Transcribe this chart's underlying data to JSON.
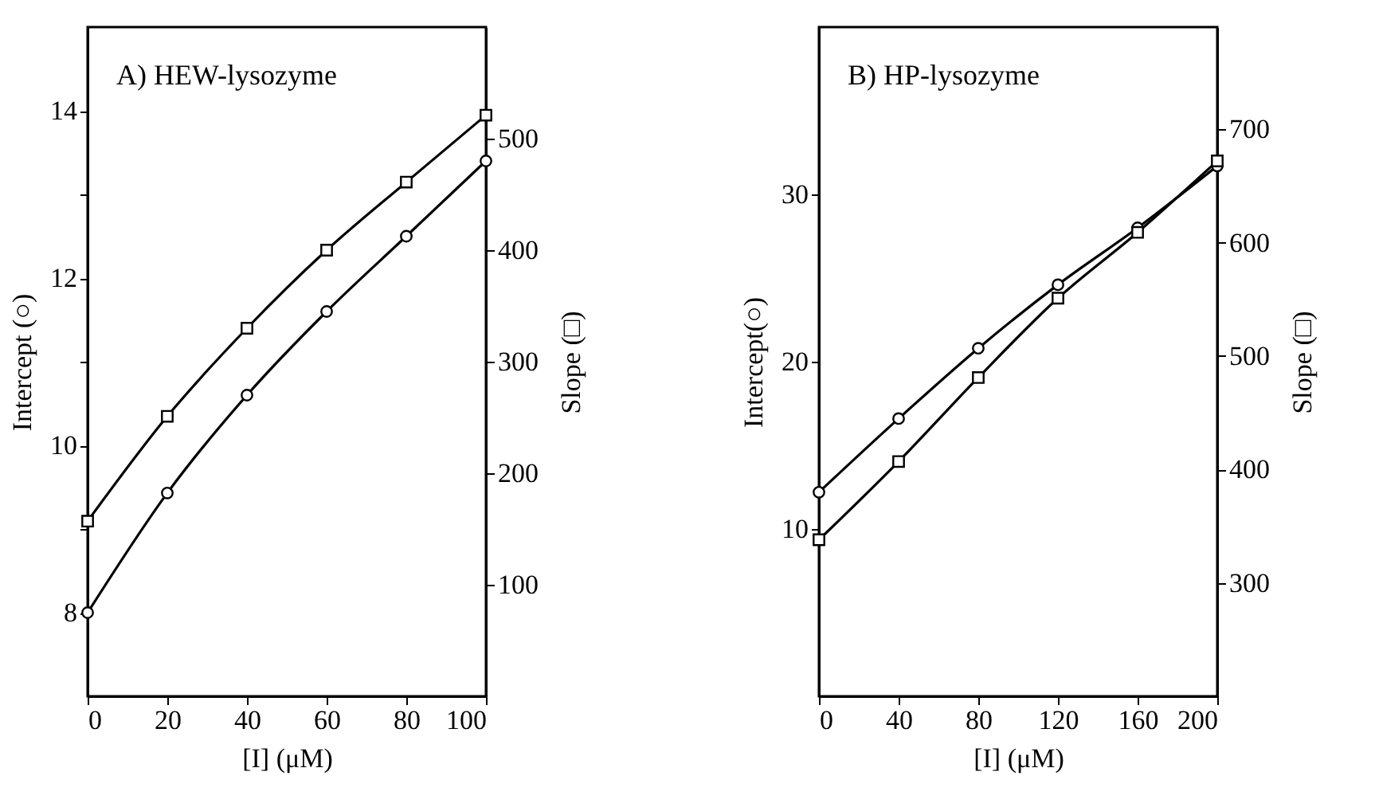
{
  "chart_data": [
    {
      "type": "line",
      "title": "A) HEW-lysozyme",
      "xlabel": "[I] (μM)",
      "ylabel": "Intercept (○)",
      "y2label": "Slope (□)",
      "x": [
        0,
        20,
        40,
        60,
        80,
        100
      ],
      "xlim": [
        0,
        100
      ],
      "xticks": [
        0,
        20,
        40,
        60,
        80,
        100
      ],
      "ylim": [
        7,
        15
      ],
      "yticks": [
        8,
        {
          "value": 9,
          "label": null
        },
        10,
        {
          "value": 11,
          "label": null
        },
        12,
        {
          "value": 13,
          "label": null
        },
        14
      ],
      "y2lim": [
        0,
        600
      ],
      "y2ticks": [
        100,
        200,
        300,
        400,
        500
      ],
      "grid": false,
      "line_style": "solid",
      "series": [
        {
          "color": "#000000",
          "marker": "circle",
          "values": [
            8.0,
            9.43,
            10.6,
            11.6,
            12.5,
            13.4
          ]
        },
        {
          "color": "#000000",
          "marker": "square",
          "axis": "y2",
          "values": [
            157,
            251,
            330,
            400,
            461,
            521
          ]
        }
      ]
    },
    {
      "type": "line",
      "title": "B) HP-lysozyme",
      "xlabel": "[I] (μM)",
      "ylabel": "Intercept(○)",
      "y2label": "Slope (□)",
      "x": [
        0,
        40,
        80,
        120,
        160,
        200
      ],
      "xlim": [
        0,
        200
      ],
      "xticks": [
        0,
        40,
        80,
        120,
        160,
        200
      ],
      "ylim": [
        0,
        40
      ],
      "yticks": [
        10,
        20,
        30
      ],
      "y2lim": [
        200,
        790
      ],
      "y2ticks": [
        300,
        400,
        500,
        600,
        700
      ],
      "grid": false,
      "line_style": "solid",
      "series": [
        {
          "color": "#000000",
          "marker": "circle",
          "values": [
            12.2,
            16.6,
            20.8,
            24.6,
            28.0,
            31.7
          ]
        },
        {
          "color": "#000000",
          "marker": "square",
          "axis": "y2",
          "values": [
            338,
            407,
            481,
            551,
            609,
            672
          ]
        }
      ]
    }
  ]
}
